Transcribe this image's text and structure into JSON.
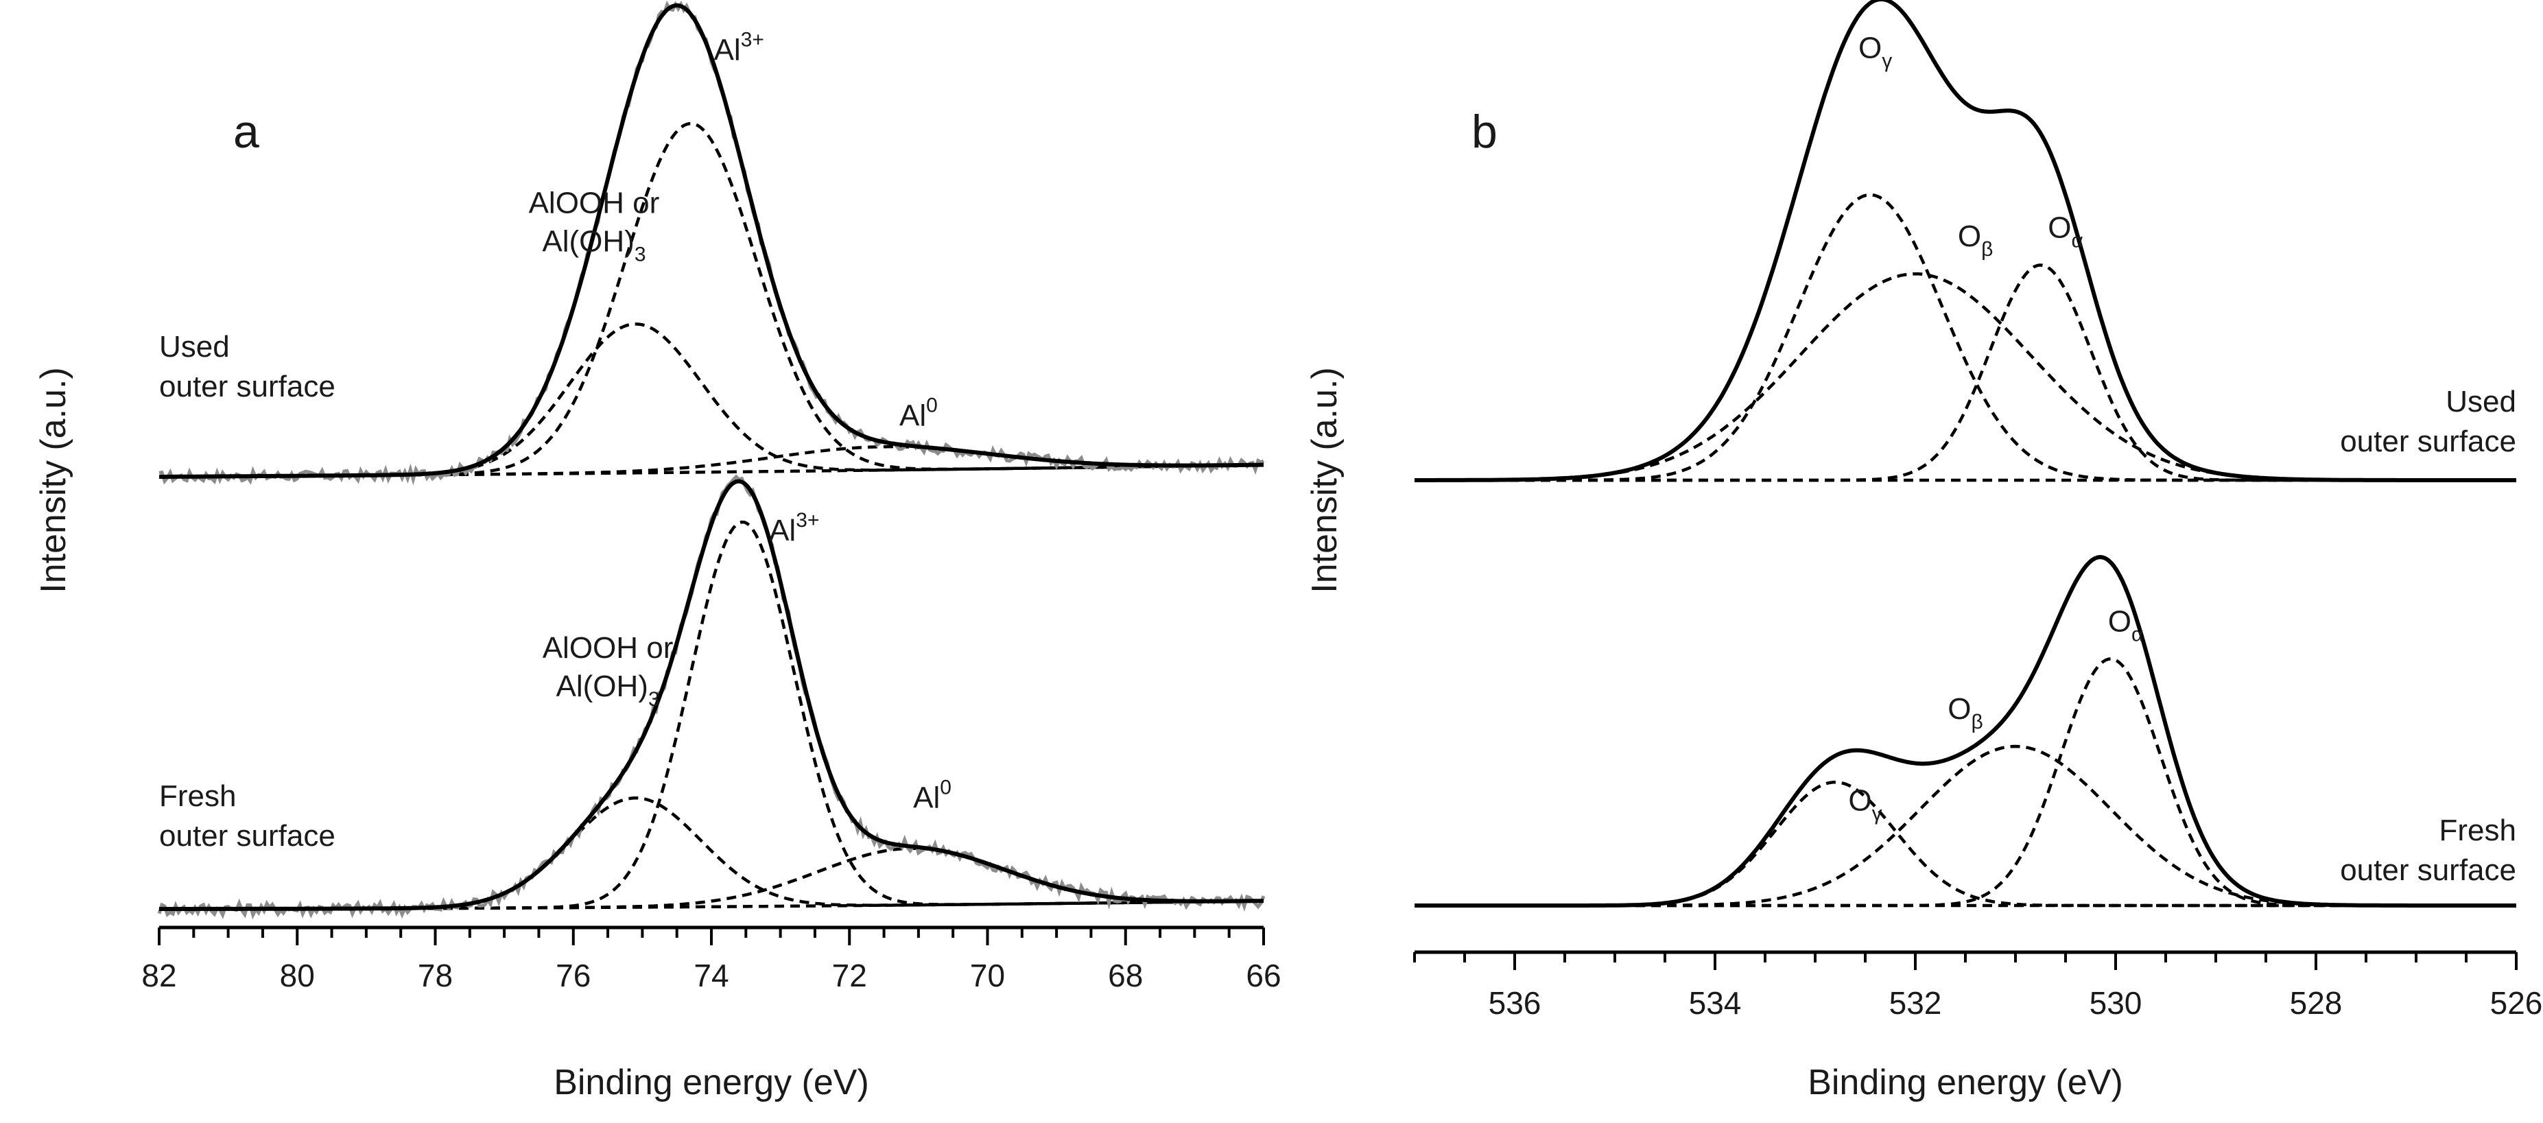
{
  "chart_data": [
    {
      "panel": "a",
      "type": "line",
      "xlabel": "Binding energy (eV)",
      "ylabel": "Intensity (a.u.)",
      "xlim": [
        82,
        66
      ],
      "x_reversed": true,
      "x_ticks": [
        82,
        80,
        78,
        76,
        74,
        72,
        70,
        68,
        66
      ],
      "spectra": [
        {
          "name": "Used outer surface",
          "label_lines": [
            "Used",
            "outer surface"
          ],
          "baseline": [
            0,
            0.4,
            0.2
          ],
          "noise": 0.012,
          "components": [
            {
              "name": "Al3+",
              "center": 74.3,
              "width": 0.95,
              "height": 0.82
            },
            {
              "name": "AlOOH or Al(OH)3",
              "center": 75.1,
              "width": 0.95,
              "height": 0.35
            },
            {
              "name": "Al0",
              "center": 71.5,
              "width": 1.6,
              "height": 0.055
            }
          ],
          "peak_labels": [
            {
              "text": "Al",
              "sup": "3+",
              "x": 73.6
            },
            {
              "text_lines": [
                "AlOOH or",
                "Al(OH)"
              ],
              "sub": "3",
              "x": 75.7
            },
            {
              "text": "Al",
              "sup": "0",
              "x": 71.0
            }
          ]
        },
        {
          "name": "Fresh outer surface",
          "label_lines": [
            "Fresh",
            "outer surface"
          ],
          "baseline": [
            0,
            0.05,
            0.3
          ],
          "noise": 0.015,
          "components": [
            {
              "name": "Al3+",
              "center": 73.55,
              "width": 0.75,
              "height": 0.95
            },
            {
              "name": "AlOOH or Al(OH)3",
              "center": 75.1,
              "width": 0.95,
              "height": 0.27
            },
            {
              "name": "Al0",
              "center": 71.1,
              "width": 1.35,
              "height": 0.14
            }
          ],
          "peak_labels": [
            {
              "text": "Al",
              "sup": "3+",
              "x": 72.8
            },
            {
              "text_lines": [
                "AlOOH or",
                "Al(OH)"
              ],
              "sub": "3",
              "x": 75.5
            },
            {
              "text": "Al",
              "sup": "0",
              "x": 70.8
            }
          ]
        }
      ]
    },
    {
      "panel": "b",
      "type": "line",
      "xlabel": "Binding energy (eV)",
      "ylabel": "Intensity (a.u.)",
      "xlim": [
        537,
        526
      ],
      "x_reversed": true,
      "x_ticks": [
        536,
        534,
        532,
        530,
        528,
        526
      ],
      "spectra": [
        {
          "name": "Used outer surface",
          "label_lines": [
            "Used",
            "outer surface"
          ],
          "baseline": [
            0,
            0,
            0
          ],
          "noise": 0,
          "components": [
            {
              "name": "Oγ",
              "center": 532.45,
              "width": 0.72,
              "height": 0.65
            },
            {
              "name": "Oβ",
              "center": 532.0,
              "width": 1.15,
              "height": 0.47
            },
            {
              "name": "Oα",
              "center": 530.75,
              "width": 0.5,
              "height": 0.49
            }
          ],
          "peak_labels": [
            {
              "text": "O",
              "sub": "γ",
              "x": 532.4
            },
            {
              "text": "O",
              "sub": "β",
              "x": 531.4
            },
            {
              "text": "O",
              "sub": "α",
              "x": 530.5
            }
          ]
        },
        {
          "name": "Fresh outer surface",
          "label_lines": [
            "Fresh",
            "outer surface"
          ],
          "baseline": [
            0,
            0,
            0
          ],
          "noise": 0,
          "components": [
            {
              "name": "Oγ",
              "center": 532.8,
              "width": 0.6,
              "height": 0.31
            },
            {
              "name": "Oβ",
              "center": 531.0,
              "width": 0.95,
              "height": 0.4
            },
            {
              "name": "Oα",
              "center": 530.05,
              "width": 0.5,
              "height": 0.62
            }
          ],
          "peak_labels": [
            {
              "text": "O",
              "sub": "γ",
              "x": 532.5
            },
            {
              "text": "O",
              "sub": "β",
              "x": 531.5
            },
            {
              "text": "O",
              "sub": "α",
              "x": 529.9
            }
          ]
        }
      ]
    }
  ]
}
